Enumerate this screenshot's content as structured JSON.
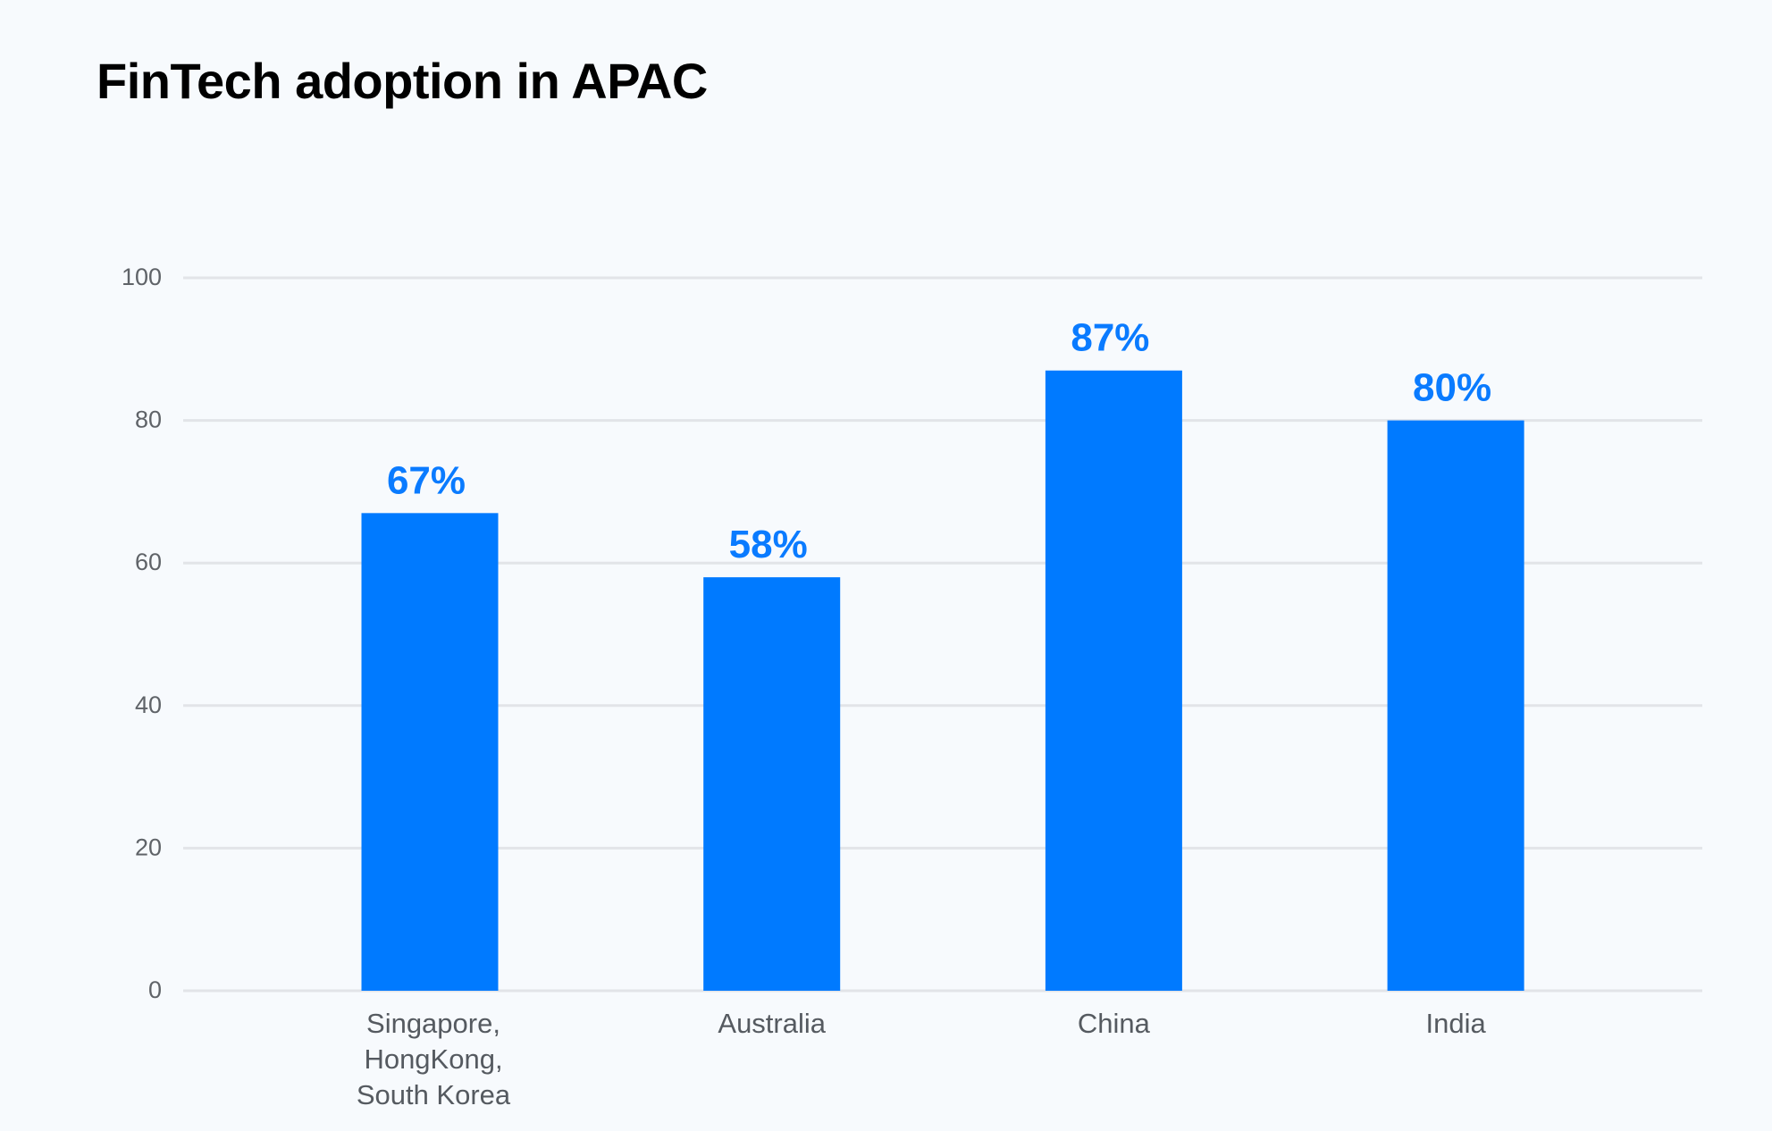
{
  "chart_data": {
    "type": "bar",
    "title": "FinTech adoption in APAC",
    "categories": [
      [
        "Singapore,",
        "HongKong,",
        "South Korea"
      ],
      [
        "Australia"
      ],
      [
        "China"
      ],
      [
        "India"
      ]
    ],
    "values": [
      67,
      58,
      87,
      80
    ],
    "data_labels": [
      "67%",
      "58%",
      "87%",
      "80%"
    ],
    "xlabel": "",
    "ylabel": "",
    "ylim": [
      0,
      100
    ],
    "yticks": [
      "0",
      "20",
      "40",
      "60",
      "80",
      "100"
    ],
    "grid": true,
    "legend": "none",
    "colors": {
      "bar": "#007aff",
      "label": "#0a7bff",
      "grid": "#e2e4e8",
      "background": "#f7fafd"
    }
  }
}
